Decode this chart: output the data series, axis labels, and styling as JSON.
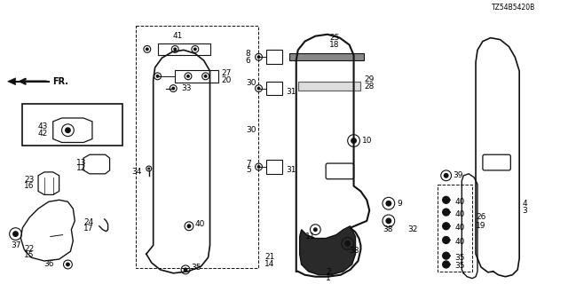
{
  "diagram_code": "TZ54B5420B",
  "bg": "#ffffff",
  "lc": "#111111",
  "tc": "#000000"
}
